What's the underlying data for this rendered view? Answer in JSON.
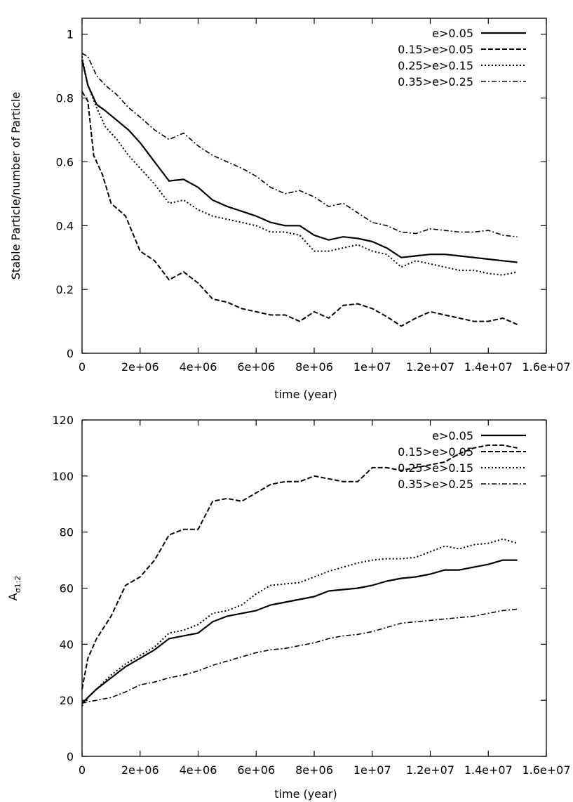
{
  "chart_data": [
    {
      "type": "line",
      "xlabel": "time (year)",
      "ylabel": "Stable Particle/number of Particle",
      "xlim": [
        0,
        16000000
      ],
      "ylim": [
        0,
        1.05
      ],
      "xticks": [
        0,
        2000000,
        4000000,
        6000000,
        8000000,
        10000000,
        12000000,
        14000000,
        16000000
      ],
      "xtick_labels": [
        "0",
        "2e+06",
        "4e+06",
        "6e+06",
        "8e+06",
        "1e+07",
        "1.2e+07",
        "1.4e+07",
        "1.6e+07"
      ],
      "yticks": [
        0,
        0.2,
        0.4,
        0.6,
        0.8,
        1
      ],
      "ytick_labels": [
        "0",
        "0.2",
        "0.4",
        "0.6",
        "0.8",
        "1"
      ],
      "legend_position": "top-right",
      "series": [
        {
          "name": "e>0.05",
          "dash": "solid",
          "x": [
            0,
            200000,
            500000,
            800000,
            1200000,
            1600000,
            2000000,
            2500000,
            3000000,
            3500000,
            4000000,
            4500000,
            5000000,
            5500000,
            6000000,
            6500000,
            7000000,
            7500000,
            8000000,
            8500000,
            9000000,
            9500000,
            10000000,
            10500000,
            11000000,
            11500000,
            12000000,
            12500000,
            13000000,
            13500000,
            14000000,
            14500000,
            15000000
          ],
          "y": [
            0.92,
            0.84,
            0.78,
            0.76,
            0.73,
            0.7,
            0.66,
            0.6,
            0.54,
            0.545,
            0.52,
            0.48,
            0.46,
            0.445,
            0.43,
            0.41,
            0.4,
            0.4,
            0.37,
            0.355,
            0.365,
            0.36,
            0.35,
            0.33,
            0.3,
            0.305,
            0.31,
            0.31,
            0.305,
            0.3,
            0.295,
            0.29,
            0.285
          ]
        },
        {
          "name": "0.15>e>0.05",
          "dash": "dashed",
          "x": [
            0,
            200000,
            400000,
            700000,
            1000000,
            1500000,
            2000000,
            2500000,
            3000000,
            3500000,
            4000000,
            4500000,
            5000000,
            5500000,
            6000000,
            6500000,
            7000000,
            7500000,
            8000000,
            8500000,
            9000000,
            9500000,
            10000000,
            10500000,
            11000000,
            11500000,
            12000000,
            12500000,
            13000000,
            13500000,
            14000000,
            14500000,
            15000000
          ],
          "y": [
            0.82,
            0.79,
            0.62,
            0.56,
            0.47,
            0.43,
            0.32,
            0.29,
            0.23,
            0.255,
            0.22,
            0.17,
            0.16,
            0.14,
            0.13,
            0.12,
            0.12,
            0.1,
            0.13,
            0.11,
            0.15,
            0.155,
            0.14,
            0.115,
            0.085,
            0.11,
            0.13,
            0.12,
            0.11,
            0.1,
            0.1,
            0.11,
            0.09
          ]
        },
        {
          "name": "0.25>e>0.15",
          "dash": "dotted",
          "x": [
            0,
            200000,
            500000,
            800000,
            1200000,
            1600000,
            2000000,
            2500000,
            3000000,
            3500000,
            4000000,
            4500000,
            5000000,
            5500000,
            6000000,
            6500000,
            7000000,
            7500000,
            8000000,
            8500000,
            9000000,
            9500000,
            10000000,
            10500000,
            11000000,
            11500000,
            12000000,
            12500000,
            13000000,
            13500000,
            14000000,
            14500000,
            15000000
          ],
          "y": [
            0.93,
            0.84,
            0.77,
            0.71,
            0.67,
            0.62,
            0.58,
            0.53,
            0.47,
            0.48,
            0.45,
            0.43,
            0.42,
            0.41,
            0.4,
            0.38,
            0.38,
            0.37,
            0.32,
            0.32,
            0.33,
            0.34,
            0.32,
            0.31,
            0.27,
            0.29,
            0.28,
            0.27,
            0.26,
            0.26,
            0.25,
            0.245,
            0.255
          ]
        },
        {
          "name": "0.35>e>0.25",
          "dash": "dashdot",
          "x": [
            0,
            200000,
            500000,
            800000,
            1200000,
            1600000,
            2000000,
            2500000,
            3000000,
            3500000,
            4000000,
            4500000,
            5000000,
            5500000,
            6000000,
            6500000,
            7000000,
            7500000,
            8000000,
            8500000,
            9000000,
            9500000,
            10000000,
            10500000,
            11000000,
            11500000,
            12000000,
            12500000,
            13000000,
            13500000,
            14000000,
            14500000,
            15000000
          ],
          "y": [
            0.94,
            0.93,
            0.87,
            0.84,
            0.81,
            0.77,
            0.74,
            0.7,
            0.67,
            0.69,
            0.65,
            0.62,
            0.6,
            0.58,
            0.555,
            0.52,
            0.5,
            0.51,
            0.49,
            0.46,
            0.47,
            0.44,
            0.41,
            0.4,
            0.38,
            0.375,
            0.39,
            0.385,
            0.38,
            0.38,
            0.385,
            0.37,
            0.365
          ]
        }
      ]
    },
    {
      "type": "line",
      "xlabel": "time (year)",
      "ylabel": "Aσ1:2",
      "ylabel_main": "A",
      "ylabel_sub": "σ1:2",
      "xlim": [
        0,
        16000000
      ],
      "ylim": [
        0,
        120
      ],
      "xticks": [
        0,
        2000000,
        4000000,
        6000000,
        8000000,
        10000000,
        12000000,
        14000000,
        16000000
      ],
      "xtick_labels": [
        "0",
        "2e+06",
        "4e+06",
        "6e+06",
        "8e+06",
        "1e+07",
        "1.2e+07",
        "1.4e+07",
        "1.6e+07"
      ],
      "yticks": [
        0,
        20,
        40,
        60,
        80,
        100,
        120
      ],
      "ytick_labels": [
        "0",
        "20",
        "40",
        "60",
        "80",
        "100",
        "120"
      ],
      "legend_position": "top-right",
      "series": [
        {
          "name": "e>0.05",
          "dash": "solid",
          "x": [
            0,
            200000,
            500000,
            1000000,
            1500000,
            2000000,
            2500000,
            3000000,
            3500000,
            4000000,
            4500000,
            5000000,
            5500000,
            6000000,
            6500000,
            7000000,
            7500000,
            8000000,
            8500000,
            9000000,
            9500000,
            10000000,
            10500000,
            11000000,
            11500000,
            12000000,
            12500000,
            13000000,
            13500000,
            14000000,
            14500000,
            15000000
          ],
          "y": [
            19,
            21,
            24,
            28,
            32,
            35,
            38,
            42,
            43,
            44,
            48,
            50,
            51,
            52,
            54,
            55,
            56,
            57,
            59,
            59.5,
            60,
            61,
            62.5,
            63.5,
            64,
            65,
            66.5,
            66.5,
            67.5,
            68.5,
            70,
            70
          ]
        },
        {
          "name": "0.15>e>0.05",
          "dash": "dashed",
          "x": [
            0,
            200000,
            500000,
            1000000,
            1500000,
            2000000,
            2500000,
            3000000,
            3500000,
            4000000,
            4500000,
            5000000,
            5500000,
            6000000,
            6500000,
            7000000,
            7500000,
            8000000,
            8500000,
            9000000,
            9500000,
            10000000,
            10500000,
            11000000,
            11500000,
            12000000,
            12500000,
            13000000,
            13500000,
            14000000,
            14500000,
            15000000
          ],
          "y": [
            24,
            35,
            42,
            50,
            61,
            64,
            70,
            79,
            81,
            81,
            91,
            92,
            91,
            94,
            97,
            98,
            98,
            100,
            99,
            98,
            98,
            103,
            103,
            102,
            103,
            104,
            105,
            108,
            110,
            111,
            111,
            110
          ]
        },
        {
          "name": "0.25>e>0.15",
          "dash": "dotted",
          "x": [
            0,
            200000,
            500000,
            1000000,
            1500000,
            2000000,
            2500000,
            3000000,
            3500000,
            4000000,
            4500000,
            5000000,
            5500000,
            6000000,
            6500000,
            7000000,
            7500000,
            8000000,
            8500000,
            9000000,
            9500000,
            10000000,
            10500000,
            11000000,
            11500000,
            12000000,
            12500000,
            13000000,
            13500000,
            14000000,
            14500000,
            15000000
          ],
          "y": [
            18,
            21,
            24,
            29,
            33,
            36,
            39,
            44,
            45,
            47,
            51,
            52,
            54,
            58,
            61,
            61.5,
            62,
            64,
            66,
            67.5,
            69,
            70,
            70.5,
            70.5,
            71,
            73,
            75,
            74,
            75.5,
            76,
            77.5,
            76
          ]
        },
        {
          "name": "0.35>e>0.25",
          "dash": "dashdot",
          "x": [
            0,
            200000,
            500000,
            1000000,
            1500000,
            2000000,
            2500000,
            3000000,
            3500000,
            4000000,
            4500000,
            5000000,
            5500000,
            6000000,
            6500000,
            7000000,
            7500000,
            8000000,
            8500000,
            9000000,
            9500000,
            10000000,
            10500000,
            11000000,
            11500000,
            12000000,
            12500000,
            13000000,
            13500000,
            14000000,
            14500000,
            15000000
          ],
          "y": [
            19,
            19.5,
            20,
            21,
            23,
            25.5,
            26.5,
            28,
            29,
            30.5,
            32.5,
            34,
            35.5,
            37,
            38,
            38.5,
            39.5,
            40.5,
            42,
            43,
            43.5,
            44.5,
            46,
            47.5,
            48,
            48.5,
            49,
            49.5,
            50,
            51,
            52,
            52.5
          ]
        }
      ]
    }
  ]
}
